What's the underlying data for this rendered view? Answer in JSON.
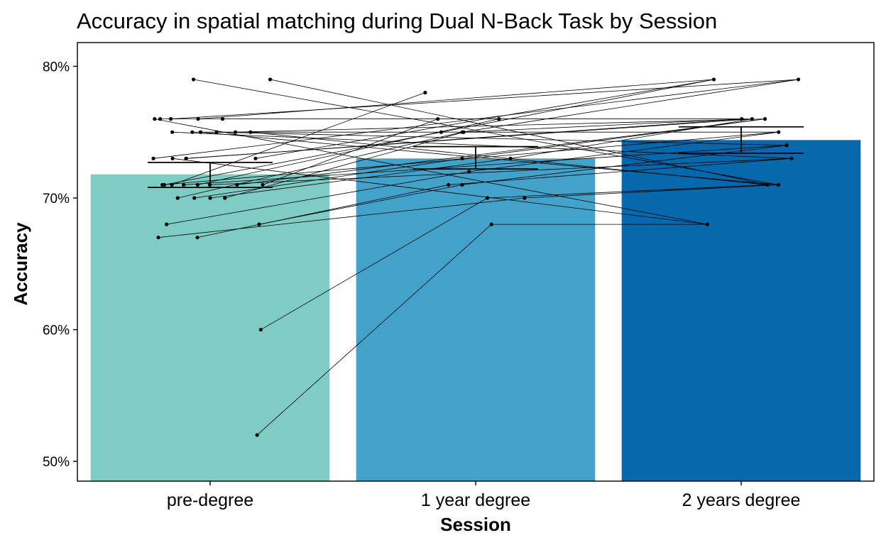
{
  "chart_data": {
    "type": "bar",
    "title": "Accuracy in spatial matching during Dual N-Back Task by Session",
    "xlabel": "Session",
    "ylabel": "Accuracy",
    "categories": [
      "pre-degree",
      "1 year degree",
      "2 years degree"
    ],
    "values": [
      71.8,
      73.0,
      74.4
    ],
    "error_bars": [
      {
        "low": 70.8,
        "high": 72.7
      },
      {
        "low": 72.2,
        "high": 73.9
      },
      {
        "low": 73.4,
        "high": 75.4
      }
    ],
    "bar_colors": [
      "#7ECCC4",
      "#43A2CA",
      "#0868AC"
    ],
    "ylim": [
      48.5,
      81.8
    ],
    "yticks": [
      50,
      60,
      70,
      80
    ],
    "ytick_labels": [
      "50%",
      "60%",
      "70%",
      "80%"
    ],
    "grid": false,
    "legend": "none",
    "points": [
      {
        "category": 0,
        "values": [
          52,
          60,
          67,
          67,
          68,
          68,
          70,
          70,
          70,
          70,
          71,
          71,
          71,
          71,
          71,
          71,
          71,
          71,
          73,
          73,
          73,
          73,
          73,
          75,
          75,
          75,
          75,
          75,
          75,
          76,
          76,
          76,
          76,
          76,
          79,
          79
        ]
      },
      {
        "category": 1,
        "values": [
          68,
          70,
          70,
          71,
          71,
          72,
          73,
          73,
          75,
          75,
          75,
          76,
          76,
          78
        ]
      },
      {
        "category": 2,
        "values": [
          68,
          71,
          71,
          73,
          74,
          75,
          76,
          76,
          76,
          79,
          79
        ]
      }
    ]
  }
}
